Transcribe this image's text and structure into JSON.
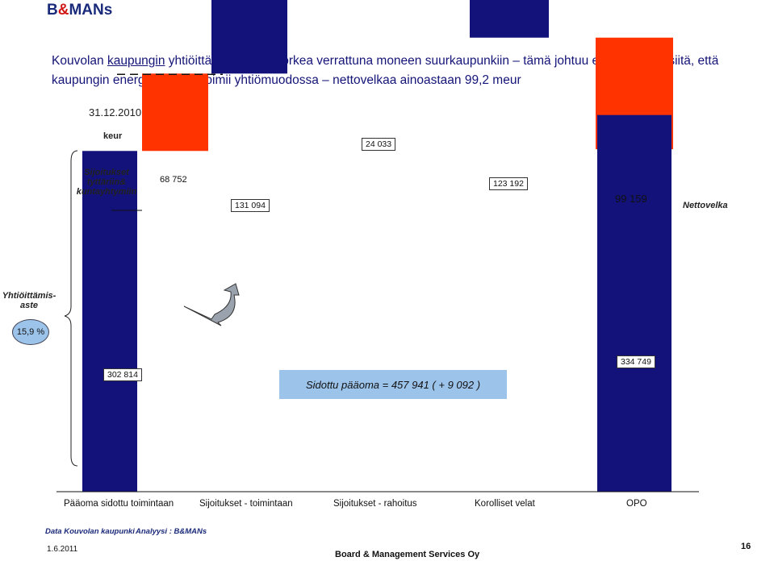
{
  "header": {
    "logo_b": "B",
    "logo_amp": "&",
    "logo_rest": "MANs",
    "title_pre": "Kouvolan ",
    "title_link": "kaupungin",
    "title_post": " yhtiöittämisaste on korkea verrattuna moneen suurkaupunkiin – tämä johtuu ennen muuta siitä, että kaupungin energiatoiminta toimii yhtiömuodossa – nettovelkaa ainoastaan 99,2 meur",
    "date": "31.12.2010"
  },
  "chart_data": {
    "type": "bar",
    "subtype": "waterfall",
    "unit": "keur",
    "categories": [
      "Pääoma sidottu toimintaan",
      "Sijoitukset - toimintaan",
      "Sijoitukset - rahoitus",
      "Korolliset velat",
      "OPO"
    ],
    "bars": [
      {
        "category": "Pääoma sidottu toimintaan",
        "value": 302814,
        "label": "302 814",
        "color": "#12127a"
      },
      {
        "category": "",
        "value": 68752,
        "label": "68 752",
        "color": "#ff3300"
      },
      {
        "category": "Sijoitukset - toimintaan",
        "value": 131094,
        "label": "131 094",
        "color": "#12127a"
      },
      {
        "category": "",
        "value": 24033,
        "label": "24 033",
        "color": "#12127a"
      },
      {
        "category": "Sijoitukset - rahoitus",
        "value": 123192,
        "label": "123 192",
        "color": "#12127a"
      },
      {
        "category": "Korolliset velat",
        "value": 99159,
        "label": "99 159",
        "color": "#ff3300"
      },
      {
        "category": "OPO",
        "value": 334749,
        "label": "334 749",
        "color": "#12127a"
      }
    ],
    "annotations": {
      "unit_label": "keur",
      "sijoitukset": "Sijoitukset tyttäriin& kuntayhtymiin",
      "nettovelka": "Nettovelka",
      "yhtiot_label": "Yhtiöittämis-aste",
      "yhtiot_value": "15,9 %",
      "sidottu": "Sidottu pääoma = 457 941 ( + 9 092 )"
    }
  },
  "footer": {
    "source1": "Data Kouvolan kaupunki",
    "source2": "Analyysi : B&MANs",
    "date": "1.6.2011",
    "company": "Board & Management Services Oy",
    "page": "16"
  }
}
